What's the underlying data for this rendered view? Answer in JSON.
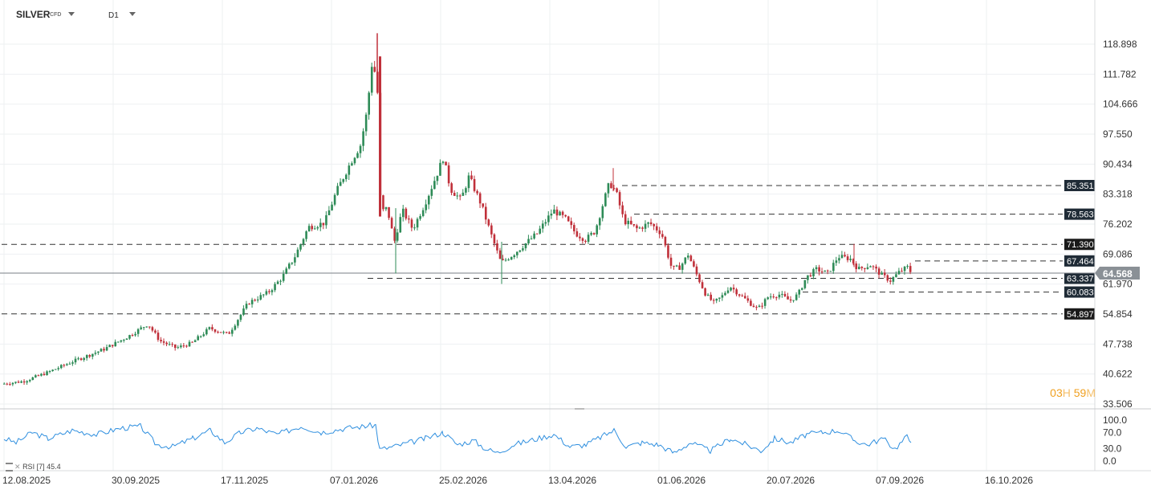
{
  "header": {
    "symbol": "SILVER",
    "symbol_suffix": "CFD",
    "timeframe": "D1"
  },
  "timer": {
    "hours": "03",
    "hours_unit": "H",
    "minutes": "59",
    "minutes_unit": "M"
  },
  "rsi": {
    "label": "RSI [7] 45.4"
  },
  "colors": {
    "up": "#2e8b57",
    "down": "#c0303a",
    "rsi_line": "#2f8fdf",
    "label_dark": "#1f2b36",
    "label_last": "#8a9096"
  },
  "chart_data": {
    "type": "candlestick",
    "y_ticks": [
      118.898,
      111.782,
      104.666,
      97.55,
      90.434,
      83.318,
      76.202,
      69.086,
      61.97,
      54.854,
      47.738,
      40.622,
      33.506
    ],
    "y_tick_labels": [
      "118.898",
      "111.782",
      "104.666",
      "97.550",
      "90.434",
      "83.318",
      "76.202",
      "69.086",
      "61.970",
      "54.854",
      "47.738",
      "40.622",
      "33.506"
    ],
    "x_tick_labels": [
      "12.08.2025",
      "30.09.2025",
      "17.11.2025",
      "07.01.2026",
      "25.02.2026",
      "13.04.2026",
      "01.06.2026",
      "20.07.2026",
      "07.09.2026",
      "16.10.2026"
    ],
    "price_levels": [
      {
        "value": 85.351,
        "label": "85.351",
        "style": "dark"
      },
      {
        "value": 78.563,
        "label": "78.563",
        "style": "dark"
      },
      {
        "value": 71.39,
        "label": "71.390",
        "style": "black"
      },
      {
        "value": 67.464,
        "label": "67.464",
        "style": "dark"
      },
      {
        "value": 63.337,
        "label": "63.337",
        "style": "dark"
      },
      {
        "value": 60.083,
        "label": "60.083",
        "style": "dark"
      },
      {
        "value": 54.897,
        "label": "54.897",
        "style": "black"
      }
    ],
    "last_price": {
      "value": 64.568,
      "label": "64.568"
    },
    "price_path": [
      [
        0,
        38.2
      ],
      [
        30,
        38.9
      ],
      [
        60,
        41.0
      ],
      [
        90,
        43.5
      ],
      [
        130,
        46.5
      ],
      [
        160,
        49.5
      ],
      [
        185,
        52.5
      ],
      [
        200,
        48.5
      ],
      [
        220,
        46.8
      ],
      [
        240,
        48.0
      ],
      [
        262,
        51.5
      ],
      [
        285,
        50.0
      ],
      [
        310,
        57.5
      ],
      [
        335,
        60.0
      ],
      [
        352,
        63.5
      ],
      [
        368,
        68.5
      ],
      [
        385,
        75.5
      ],
      [
        405,
        76.5
      ],
      [
        420,
        84.0
      ],
      [
        438,
        91.0
      ],
      [
        450,
        95.0
      ],
      [
        458,
        103.0
      ],
      [
        465,
        116.0
      ],
      [
        472,
        106.0
      ],
      [
        475,
        79.0
      ],
      [
        483,
        80.0
      ],
      [
        492,
        72.0
      ],
      [
        502,
        79.5
      ],
      [
        515,
        75.0
      ],
      [
        530,
        81.0
      ],
      [
        545,
        88.0
      ],
      [
        553,
        92.0
      ],
      [
        562,
        84.5
      ],
      [
        575,
        82.0
      ],
      [
        585,
        87.5
      ],
      [
        600,
        81.0
      ],
      [
        613,
        73.5
      ],
      [
        625,
        67.0
      ],
      [
        640,
        69.0
      ],
      [
        655,
        71.5
      ],
      [
        670,
        74.0
      ],
      [
        690,
        79.5
      ],
      [
        705,
        77.5
      ],
      [
        718,
        74.0
      ],
      [
        730,
        72.5
      ],
      [
        742,
        74.5
      ],
      [
        752,
        81.0
      ],
      [
        760,
        86.0
      ],
      [
        768,
        84.0
      ],
      [
        778,
        77.0
      ],
      [
        795,
        75.0
      ],
      [
        810,
        76.5
      ],
      [
        825,
        74.0
      ],
      [
        838,
        65.5
      ],
      [
        848,
        66.0
      ],
      [
        858,
        69.0
      ],
      [
        868,
        64.5
      ],
      [
        880,
        59.5
      ],
      [
        890,
        57.5
      ],
      [
        900,
        59.0
      ],
      [
        910,
        61.5
      ],
      [
        922,
        59.5
      ],
      [
        935,
        57.5
      ],
      [
        945,
        56.0
      ],
      [
        958,
        59.0
      ],
      [
        972,
        59.5
      ],
      [
        985,
        58.0
      ],
      [
        995,
        59.5
      ],
      [
        1005,
        63.5
      ],
      [
        1018,
        65.5
      ],
      [
        1032,
        64.5
      ],
      [
        1045,
        68.5
      ],
      [
        1060,
        68.0
      ],
      [
        1070,
        65.5
      ],
      [
        1085,
        66.5
      ],
      [
        1100,
        64.0
      ],
      [
        1110,
        62.8
      ],
      [
        1122,
        65.0
      ],
      [
        1132,
        66.0
      ],
      [
        1136,
        64.6
      ]
    ],
    "rsi_series": [
      {
        "x": 5,
        "v": 55
      },
      {
        "x": 20,
        "v": 45
      },
      {
        "x": 40,
        "v": 70
      },
      {
        "x": 60,
        "v": 55
      },
      {
        "x": 90,
        "v": 75
      },
      {
        "x": 120,
        "v": 65
      },
      {
        "x": 150,
        "v": 80
      },
      {
        "x": 175,
        "v": 85
      },
      {
        "x": 195,
        "v": 40
      },
      {
        "x": 215,
        "v": 35
      },
      {
        "x": 240,
        "v": 55
      },
      {
        "x": 262,
        "v": 75
      },
      {
        "x": 280,
        "v": 45
      },
      {
        "x": 300,
        "v": 70
      },
      {
        "x": 320,
        "v": 80
      },
      {
        "x": 345,
        "v": 65
      },
      {
        "x": 375,
        "v": 85
      },
      {
        "x": 400,
        "v": 70
      },
      {
        "x": 430,
        "v": 80
      },
      {
        "x": 455,
        "v": 85
      },
      {
        "x": 468,
        "v": 88
      },
      {
        "x": 473,
        "v": 28
      },
      {
        "x": 490,
        "v": 35
      },
      {
        "x": 510,
        "v": 45
      },
      {
        "x": 530,
        "v": 55
      },
      {
        "x": 552,
        "v": 70
      },
      {
        "x": 570,
        "v": 40
      },
      {
        "x": 590,
        "v": 50
      },
      {
        "x": 605,
        "v": 30
      },
      {
        "x": 620,
        "v": 20
      },
      {
        "x": 640,
        "v": 40
      },
      {
        "x": 660,
        "v": 50
      },
      {
        "x": 690,
        "v": 65
      },
      {
        "x": 710,
        "v": 35
      },
      {
        "x": 730,
        "v": 40
      },
      {
        "x": 750,
        "v": 60
      },
      {
        "x": 765,
        "v": 75
      },
      {
        "x": 780,
        "v": 35
      },
      {
        "x": 800,
        "v": 45
      },
      {
        "x": 820,
        "v": 40
      },
      {
        "x": 840,
        "v": 20
      },
      {
        "x": 860,
        "v": 45
      },
      {
        "x": 885,
        "v": 25
      },
      {
        "x": 910,
        "v": 55
      },
      {
        "x": 930,
        "v": 40
      },
      {
        "x": 948,
        "v": 25
      },
      {
        "x": 965,
        "v": 55
      },
      {
        "x": 985,
        "v": 45
      },
      {
        "x": 1005,
        "v": 65
      },
      {
        "x": 1025,
        "v": 70
      },
      {
        "x": 1045,
        "v": 75
      },
      {
        "x": 1065,
        "v": 50
      },
      {
        "x": 1080,
        "v": 40
      },
      {
        "x": 1100,
        "v": 55
      },
      {
        "x": 1115,
        "v": 30
      },
      {
        "x": 1130,
        "v": 60
      },
      {
        "x": 1135,
        "v": 45
      }
    ],
    "rsi_y_ticks": [
      100.0,
      70.0,
      30.0,
      0.0
    ],
    "rsi_y_tick_labels": [
      "100.0",
      "70.0",
      "30.0",
      "0.0"
    ]
  }
}
